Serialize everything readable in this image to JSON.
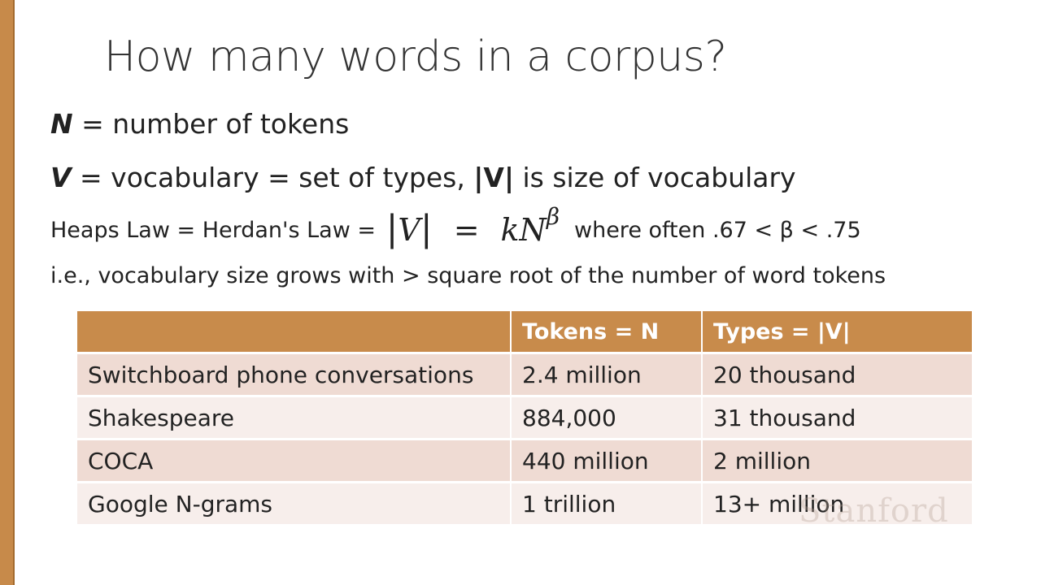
{
  "slide": {
    "title": "How many words in a corpus?"
  },
  "definitions": {
    "n_symbol": "N",
    "n_text": " = number of tokens",
    "v_symbol": "V",
    "v_text": " = vocabulary = set of types, ",
    "v_size_symbol": "|V|",
    "v_size_text": " is size of vocabulary"
  },
  "heaps": {
    "prefix": "Heaps Law = Herdan's Law = ",
    "formula_bar": "|",
    "formula_v": "V",
    "formula_eq": "=",
    "formula_kn": "kN",
    "formula_beta": "β",
    "suffix": "where often .67 < β < .75"
  },
  "ie_line": "i.e., vocabulary size grows with > square root of the number of word tokens",
  "table": {
    "headers": [
      "",
      "Tokens = N",
      "Types = |V|"
    ],
    "rows": [
      [
        "Switchboard phone conversations",
        "2.4 million",
        "20 thousand"
      ],
      [
        "Shakespeare",
        "884,000",
        "31 thousand"
      ],
      [
        "COCA",
        "440 million",
        "2 million"
      ],
      [
        "Google N-grams",
        "1 trillion",
        "13+ million"
      ]
    ]
  },
  "watermark": "Stanford",
  "colors": {
    "accent": "#c88b4b",
    "row_dark": "#efdbd3",
    "row_light": "#f7eeeb"
  }
}
